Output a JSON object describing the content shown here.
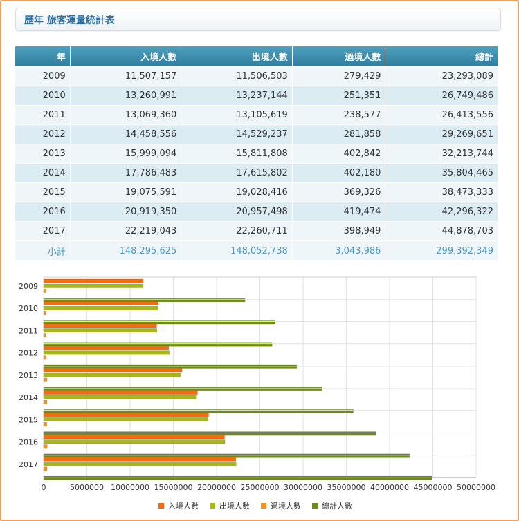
{
  "header": {
    "title": "歷年 旅客運量統計表"
  },
  "table": {
    "columns": [
      "年",
      "入境人數",
      "出境人數",
      "過境人數",
      "總計"
    ],
    "rows": [
      [
        "2009",
        "11,507,157",
        "11,506,503",
        "279,429",
        "23,293,089"
      ],
      [
        "2010",
        "13,260,991",
        "13,237,144",
        "251,351",
        "26,749,486"
      ],
      [
        "2011",
        "13,069,360",
        "13,105,619",
        "238,577",
        "26,413,556"
      ],
      [
        "2012",
        "14,458,556",
        "14,529,237",
        "281,858",
        "29,269,651"
      ],
      [
        "2013",
        "15,999,094",
        "15,811,808",
        "402,842",
        "32,213,744"
      ],
      [
        "2014",
        "17,786,483",
        "17,615,802",
        "402,180",
        "35,804,465"
      ],
      [
        "2015",
        "19,075,591",
        "19,028,416",
        "369,326",
        "38,473,333"
      ],
      [
        "2016",
        "20,919,350",
        "20,957,498",
        "419,474",
        "42,296,322"
      ],
      [
        "2017",
        "22,219,043",
        "22,260,711",
        "398,949",
        "44,878,703"
      ]
    ],
    "total": [
      "小計",
      "148,295,625",
      "148,052,738",
      "3,043,986",
      "299,392,349"
    ]
  },
  "chart_data": {
    "type": "bar",
    "orientation": "horizontal",
    "categories": [
      "2009",
      "2010",
      "2011",
      "2012",
      "2013",
      "2014",
      "2015",
      "2016",
      "2017"
    ],
    "series": [
      {
        "name": "入境人數",
        "color": "#f26d0f",
        "values": [
          11507157,
          13260991,
          13069360,
          14458556,
          15999094,
          17786483,
          19075591,
          20919350,
          22219043
        ]
      },
      {
        "name": "出境人數",
        "color": "#a8b81a",
        "values": [
          11506503,
          13237144,
          13105619,
          14529237,
          15811808,
          17615802,
          19028416,
          20957498,
          22260711
        ]
      },
      {
        "name": "過境人數",
        "color": "#f6921e",
        "values": [
          279429,
          251351,
          238577,
          281858,
          402842,
          402180,
          369326,
          419474,
          398949
        ]
      },
      {
        "name": "總計人數",
        "color": "#6d8f10",
        "values": [
          23293089,
          26749486,
          26413556,
          29269651,
          32213744,
          35804465,
          38473333,
          42296322,
          44878703
        ]
      }
    ],
    "xlim": [
      0,
      50000000
    ],
    "xticks": [
      "0",
      "5000000",
      "10000000",
      "15000000",
      "20000000",
      "25000000",
      "30000000",
      "35000000",
      "40000000",
      "45000000",
      "50000000"
    ],
    "grid": true,
    "legend": "bottom"
  }
}
